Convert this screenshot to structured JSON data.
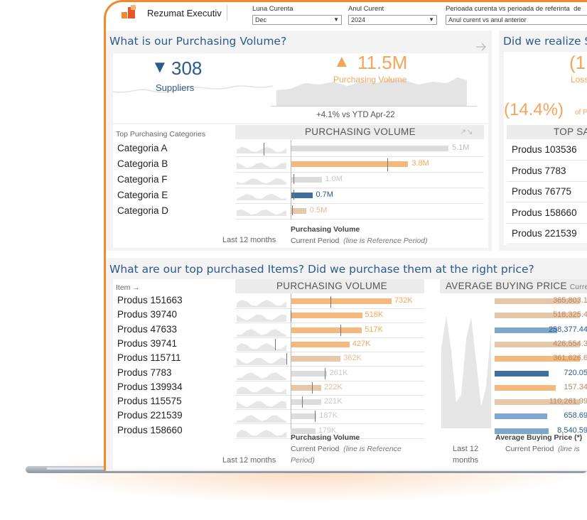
{
  "header": {
    "title": "Rezumat Executiv",
    "filters": [
      {
        "label": "Luna Curenta",
        "value": "Dec"
      },
      {
        "label": "Anul Curent",
        "value": "2024"
      },
      {
        "label": "Perioada curenta vs perioada de referinta",
        "value": "Anul curent vs anul anterior"
      }
    ],
    "cutoff_label": "de"
  },
  "colors": {
    "accent": "#f08a2c",
    "blue": "#2d5a8c",
    "orange_bar": "#f5b97e",
    "tan_bar": "#e6c7a8",
    "grey_bar": "#d9d9d9"
  },
  "purchasing": {
    "title": "What is our Purchasing Volume?",
    "suppliers_value": "308",
    "suppliers_label": "Suppliers",
    "suppliers_arrow": "▼",
    "volume_value": "11.5M",
    "volume_arrow": "▲",
    "volume_label": "Purchasing Volume",
    "change_pct": "+4.1%",
    "change_text": "vs YTD Apr-22",
    "categories_header": "Top Purchasing Categories",
    "chart_header": "PURCHASING VOLUME",
    "footer_left": "Last 12 months",
    "footer_title": "Purchasing Volume",
    "footer_period": "Current Period",
    "footer_note": "(line is Reference Period)"
  },
  "savings": {
    "title": "Did we realize S",
    "kpi_partial": "(1",
    "losses_partial": "Losse",
    "pct": "(14.4%)",
    "pct_suffix": "of P",
    "table_header": "TOP SA",
    "products": [
      "Produs 103536",
      "Produs 7783",
      "Produs 76775",
      "Produs 158660",
      "Produs 221539"
    ]
  },
  "items": {
    "title": "What are our top purchased Items? Did we purchase them at the right price?",
    "item_header": "Item →",
    "volume_header": "PURCHASING VOLUME",
    "price_header": "AVERAGE BUYING PRICE",
    "price_header_suffix": "Curre",
    "footer_left": "Last 12 months",
    "footer_vol_title": "Purchasing Volume",
    "footer_vol_period": "Current Period",
    "footer_vol_note_a": "(line is Reference",
    "footer_vol_note_b": "Period)",
    "footer_last12_a": "Last 12",
    "footer_last12_b": "months",
    "footer_price_title": "Average Buying Price (*)",
    "footer_price_period": "Current Period",
    "footer_price_note": "(line is"
  },
  "chart_data": [
    {
      "type": "bar",
      "title": "PURCHASING VOLUME",
      "categories": [
        "Categoria A",
        "Categoria B",
        "Categoria F",
        "Categoria E",
        "Categoria D"
      ],
      "values": [
        5.1,
        3.8,
        1.0,
        0.7,
        0.5
      ],
      "labels": [
        "5.1M",
        "3.8M",
        "1.0M",
        "0.7M",
        "0.5M"
      ],
      "unit": "M",
      "colors": [
        "#dcdcdc",
        "#f5b97e",
        "#dcdcdc",
        "#3f6f9f",
        "#e6c7a8"
      ],
      "label_colors": [
        "#bbbbbb",
        "#f5a55a",
        "#c9c9c9",
        "#2d5a8c",
        "#e6b89a"
      ]
    },
    {
      "type": "bar",
      "title": "PURCHASING VOLUME",
      "categories": [
        "Produs 151663",
        "Produs 39740",
        "Produs 47633",
        "Produs 39741",
        "Produs 115711",
        "Produs 7783",
        "Produs 139934",
        "Produs 115575",
        "Produs 221539",
        "Produs 158660"
      ],
      "values": [
        732,
        518,
        517,
        427,
        362,
        261,
        222,
        221,
        187,
        179
      ],
      "labels": [
        "732K",
        "518K",
        "517K",
        "427K",
        "362K",
        "261K",
        "222K",
        "221K",
        "187K",
        "179K"
      ],
      "unit": "K",
      "colors": [
        "#f5b97e",
        "#f5b97e",
        "#f5b97e",
        "#f5b97e",
        "#e6c7a8",
        "#dcdcdc",
        "#e6c7a8",
        "#dcdcdc",
        "#dcdcdc",
        "#dcdcdc"
      ],
      "label_colors": [
        "#f5a55a",
        "#f5a55a",
        "#f5a55a",
        "#f5a55a",
        "#e6b89a",
        "#c9c9c9",
        "#e6b89a",
        "#c9c9c9",
        "#c9c9c9",
        "#c9c9c9"
      ]
    },
    {
      "type": "bar",
      "title": "AVERAGE BUYING PRICE",
      "categories": [
        "Produs 151663",
        "Produs 39740",
        "Produs 47633",
        "Produs 39741",
        "Produs 115711",
        "Produs 7783",
        "Produs 139934",
        "Produs 115575",
        "Produs 221539",
        "Produs 158660"
      ],
      "labels": [
        "365,803.1",
        "518,325.4",
        "258,377.44",
        "426,554.3",
        "361,626.6",
        "720.05",
        "157.34",
        "110,261.99",
        "658.69",
        "8,540.59"
      ],
      "colors": [
        "#e6c7a8",
        "#e6c7a8",
        "#7fa6cc",
        "#e6c7a8",
        "#f5b97e",
        "#3f6f9f",
        "#f5b97e",
        "#e6c7a8",
        "#7fa6cc",
        "#7fa6cc"
      ]
    }
  ]
}
